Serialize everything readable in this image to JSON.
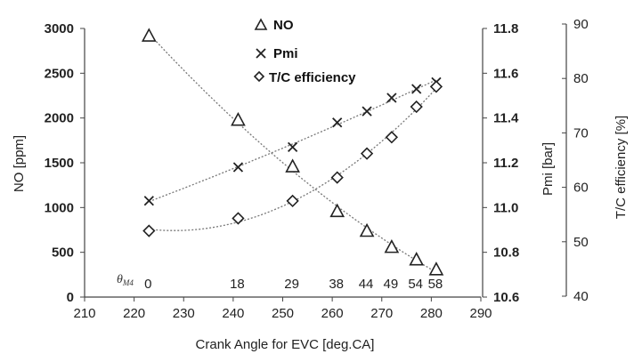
{
  "chart_data": {
    "type": "scatter",
    "xlabel": "Crank Angle for EVC [deg.CA]",
    "xlim": [
      210,
      290
    ],
    "x_ticks": [
      "210",
      "220",
      "230",
      "240",
      "250",
      "260",
      "270",
      "280",
      "290"
    ],
    "axes": {
      "left": {
        "label": "NO [ppm]",
        "ylim": [
          0,
          3000
        ],
        "ticks": [
          "0",
          "500",
          "1000",
          "1500",
          "2000",
          "2500",
          "3000"
        ]
      },
      "right1": {
        "label": "Pmi [bar]",
        "ylim": [
          10.6,
          11.8
        ],
        "ticks": [
          "10.6",
          "10.8",
          "11.0",
          "11.2",
          "11.4",
          "11.6",
          "11.8"
        ]
      },
      "right2": {
        "label": "T/C efficiency [%]",
        "ylim": [
          40,
          90
        ],
        "ticks": [
          "40",
          "50",
          "60",
          "70",
          "80",
          "90"
        ]
      }
    },
    "series": [
      {
        "name": "NO",
        "axis": "left",
        "marker": "triangle",
        "x": [
          223,
          241,
          252,
          261,
          267,
          272,
          277,
          281
        ],
        "y": [
          2920,
          1980,
          1460,
          960,
          740,
          560,
          420,
          310
        ]
      },
      {
        "name": "Pmi",
        "axis": "right1",
        "marker": "x",
        "x": [
          223,
          241,
          252,
          261,
          267,
          272,
          277,
          281
        ],
        "y": [
          11.03,
          11.18,
          11.27,
          11.38,
          11.43,
          11.49,
          11.53,
          11.56
        ]
      },
      {
        "name": "T/C efficiency",
        "axis": "right2",
        "marker": "diamond",
        "x": [
          223,
          241,
          252,
          261,
          267,
          272,
          277,
          281
        ],
        "y": [
          52,
          54.3,
          57.5,
          61.8,
          66.2,
          69.2,
          74.8,
          78.5
        ]
      }
    ],
    "theta_label": "θ_M4",
    "theta_x": [
      223,
      241,
      252,
      261,
      267,
      272,
      277,
      281
    ],
    "theta_values": [
      "0",
      "18",
      "29",
      "38",
      "44",
      "49",
      "54",
      "58"
    ],
    "grid": false,
    "legend_position": "top-center"
  }
}
